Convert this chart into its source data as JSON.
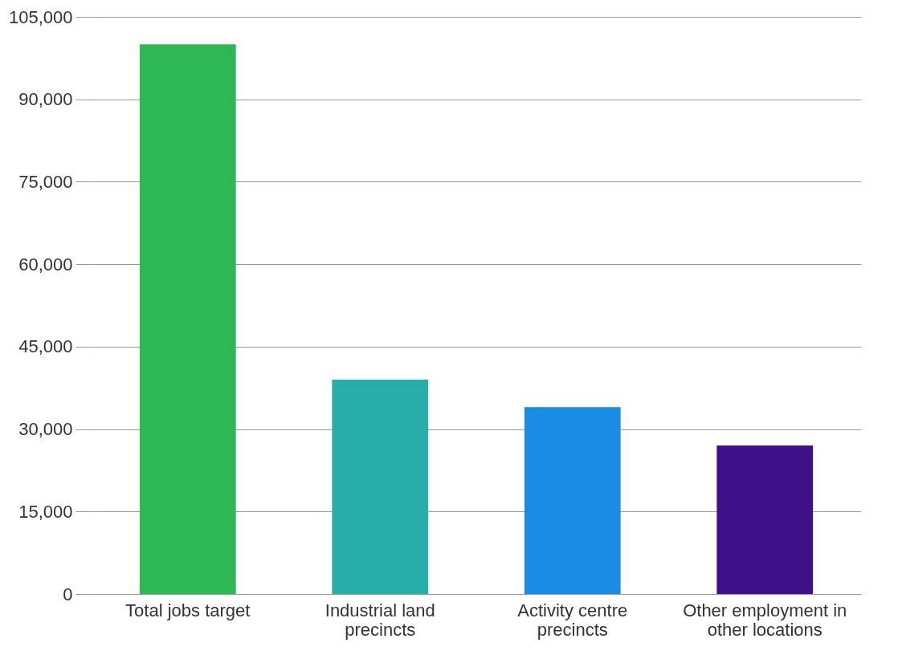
{
  "chart_data": {
    "type": "bar",
    "categories": [
      "Total jobs target",
      "Industrial land precincts",
      "Activity centre precincts",
      "Other employment in other locations"
    ],
    "values": [
      100000,
      39000,
      34000,
      27000
    ],
    "colors": [
      "#2db755",
      "#27aeaa",
      "#1a8ce3",
      "#3f1087"
    ],
    "ylim": [
      0,
      105000
    ],
    "yticks": [
      0,
      {
        "value": 15000,
        "label": "15,000"
      },
      {
        "value": 30000,
        "label": "30,000"
      },
      {
        "value": 45000,
        "label": "45,000"
      },
      {
        "value": 60000,
        "label": "60,000"
      },
      {
        "value": 75000,
        "label": "75,000"
      },
      {
        "value": 90000,
        "label": "90,000"
      },
      {
        "value": 105000,
        "label": "105,000"
      }
    ],
    "grid": "y",
    "legend": false
  }
}
